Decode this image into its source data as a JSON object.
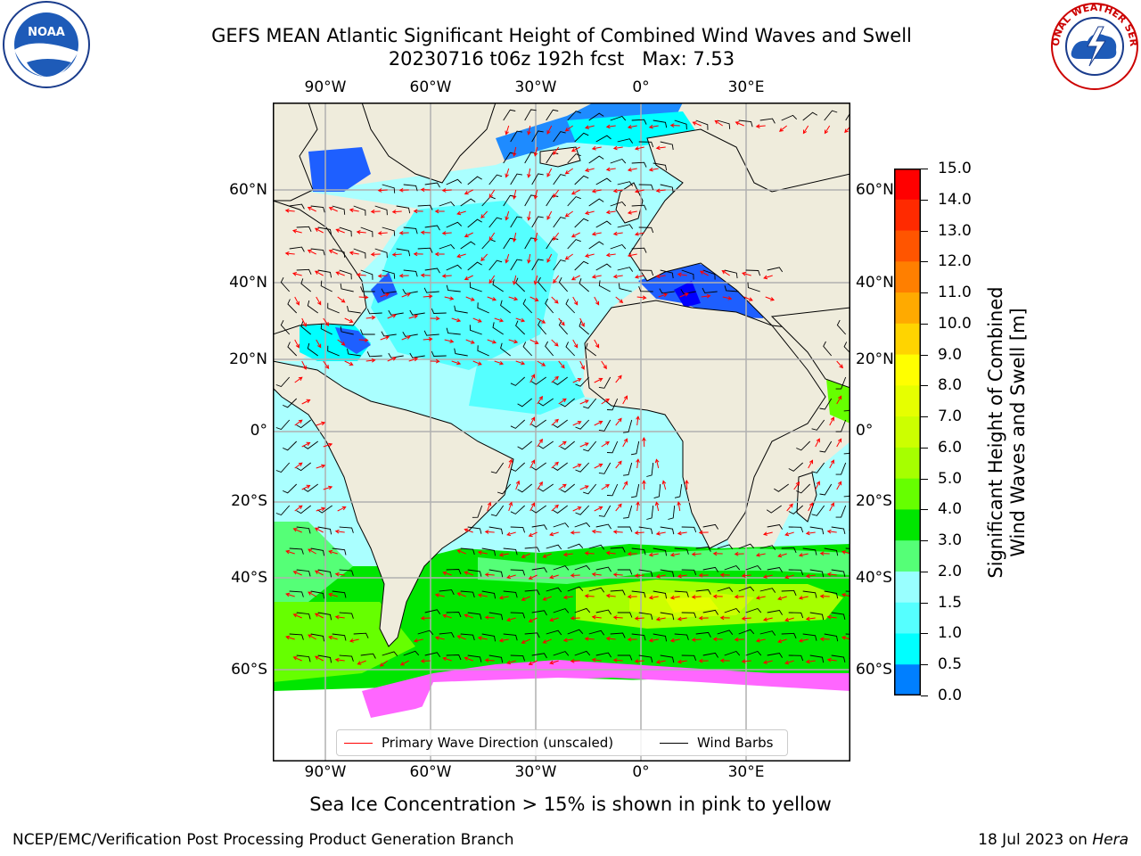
{
  "title": {
    "line1": "GEFS MEAN Atlantic Significant Height of Combined Wind Waves and Swell",
    "line2": "20230716 t06z 192h fcst   Max: 7.53"
  },
  "logos": {
    "left": "noaa-logo",
    "left_text": "NOAA",
    "right": "nws-logo",
    "right_text": "NATIONAL WEATHER SERVICE"
  },
  "axes": {
    "lon_ticks": [
      "90°W",
      "60°W",
      "30°W",
      "0°",
      "30°E"
    ],
    "lat_ticks": [
      "60°N",
      "40°N",
      "20°N",
      "0°",
      "20°S",
      "40°S",
      "60°S"
    ]
  },
  "colorbar": {
    "title": "Significant Height of Combined Wind Waves and Swell [m]",
    "ticks": [
      "15.0",
      "14.0",
      "13.0",
      "12.0",
      "11.0",
      "10.0",
      "9.0",
      "8.0",
      "7.0",
      "6.0",
      "5.0",
      "4.0",
      "3.0",
      "2.0",
      "1.5",
      "1.0",
      "0.5",
      "0.0"
    ],
    "colors": [
      "#ff0000",
      "#ff2a00",
      "#ff5500",
      "#ff7f00",
      "#ffaa00",
      "#ffd400",
      "#ffff00",
      "#e6ff00",
      "#ccff00",
      "#a6ff00",
      "#66ff00",
      "#00e600",
      "#55ff77",
      "#99ffff",
      "#55ffff",
      "#00ffff",
      "#007fff",
      "#0000ff"
    ]
  },
  "legend": {
    "wave_direction": "Primary Wave Direction (unscaled)",
    "wave_color": "#ff0000",
    "wind_barbs": "Wind Barbs",
    "wind_color": "#000000"
  },
  "caption": "Sea Ice Concentration > 15% is shown in pink to yellow",
  "footer": {
    "left": "NCEP/EMC/Verification Post Processing Product Generation Branch",
    "right_date": "18 Jul 2023 on ",
    "right_machine": "Hera"
  }
}
